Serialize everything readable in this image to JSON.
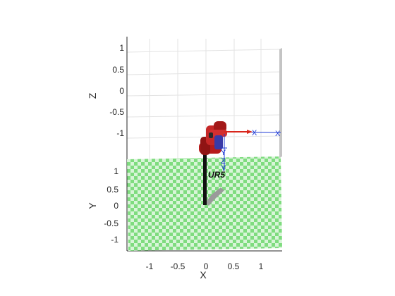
{
  "axes": {
    "z_label": "Z",
    "y_label": "Y",
    "x_label": "X",
    "z_ticks": [
      "1",
      "0.5",
      "0",
      "-0.5",
      "-1"
    ],
    "y_ticks": [
      "1",
      "0.5",
      "0",
      "-0.5",
      "-1"
    ],
    "x_ticks": [
      "-1",
      "-0.5",
      "0",
      "0.5",
      "1"
    ]
  },
  "robot": {
    "name": "UR5",
    "frame_labels": [
      "X",
      "X",
      "Y",
      "Z",
      "Y"
    ]
  },
  "colors": {
    "floor_green": "#7fdc7f",
    "floor_light": "#d8f5d8",
    "robot_red": "#b71c1c",
    "frame_blue": "#1f3bd6",
    "frame_red": "#d9261c",
    "grid": "#e3e3e3",
    "axis": "#262626"
  }
}
